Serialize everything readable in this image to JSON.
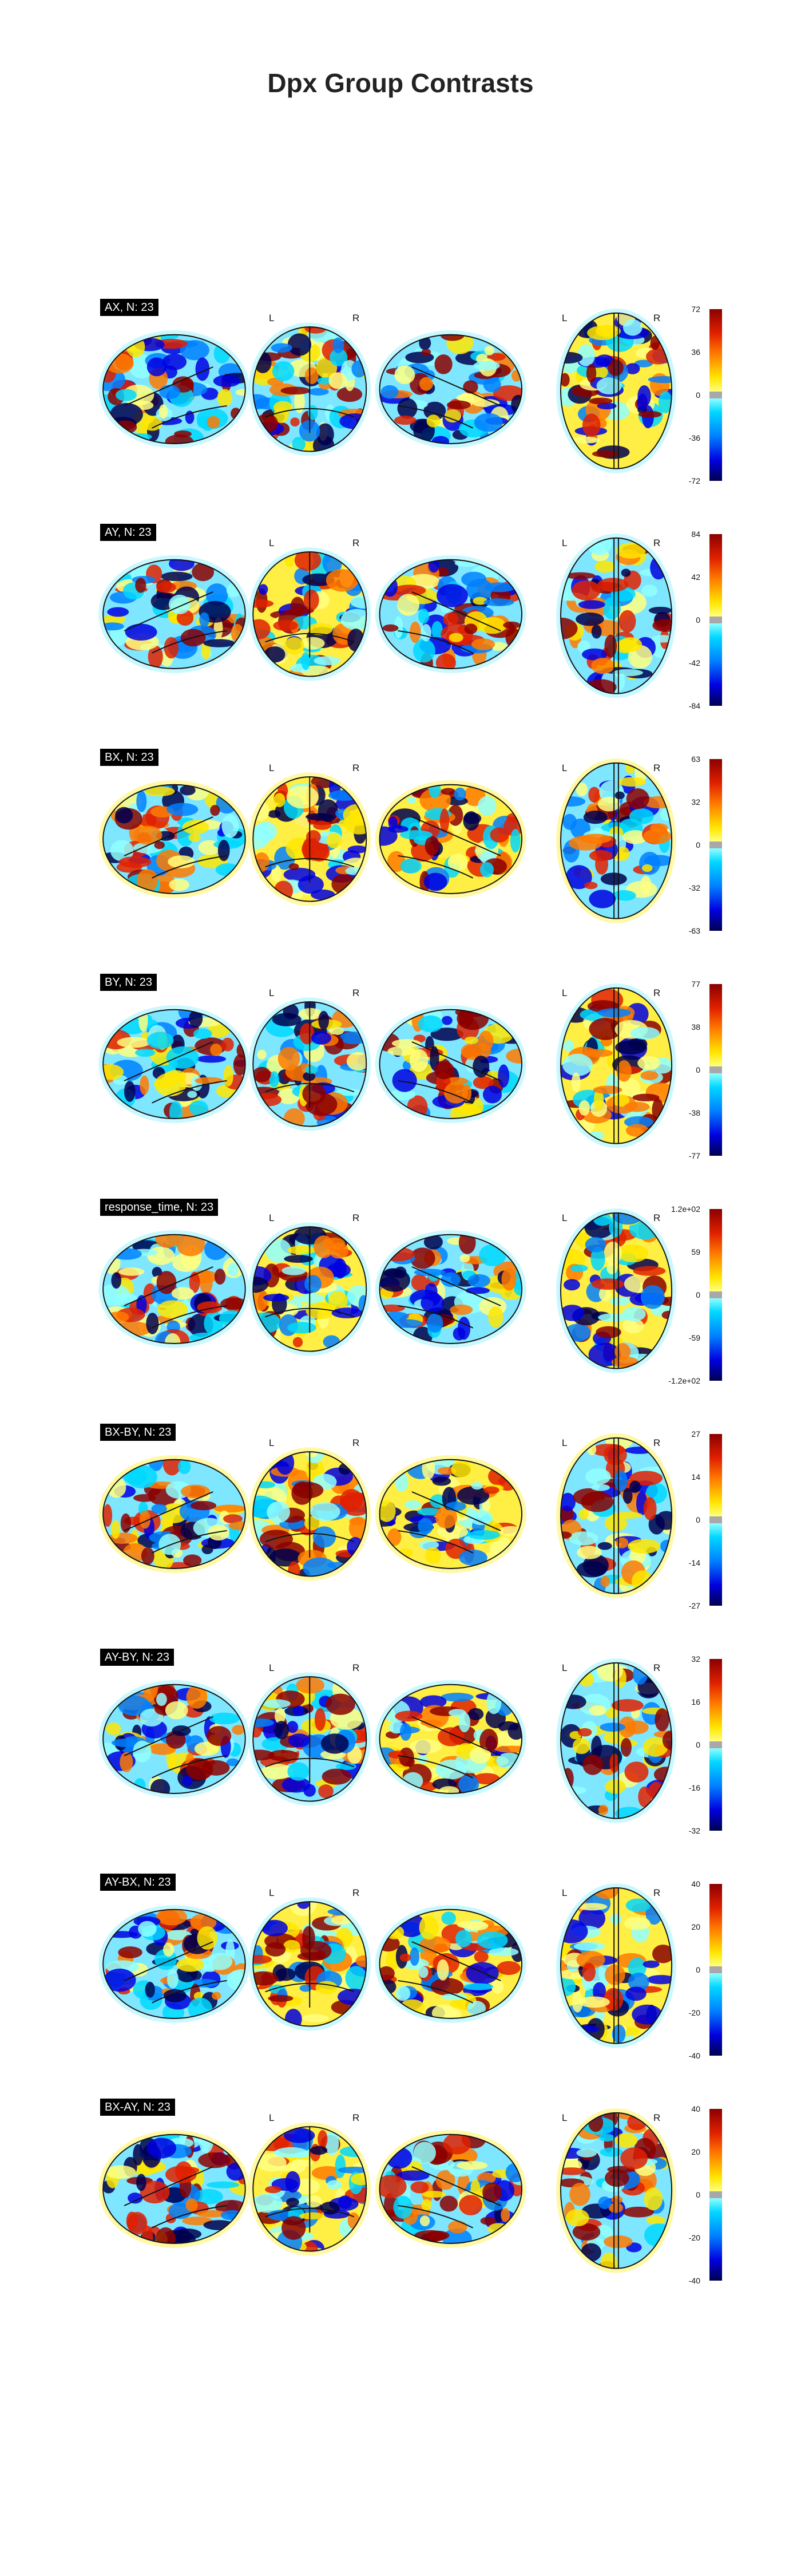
{
  "title": "Dpx Group Contrasts",
  "panels": [
    {
      "label": "AX, N: 23",
      "ticks": [
        "72",
        "36",
        "0",
        "-36",
        "-72"
      ],
      "seed": 11
    },
    {
      "label": "AY, N: 23",
      "ticks": [
        "84",
        "42",
        "0",
        "-42",
        "-84"
      ],
      "seed": 23
    },
    {
      "label": "BX, N: 23",
      "ticks": [
        "63",
        "32",
        "0",
        "-32",
        "-63"
      ],
      "seed": 37
    },
    {
      "label": "BY, N: 23",
      "ticks": [
        "77",
        "38",
        "0",
        "-38",
        "-77"
      ],
      "seed": 41
    },
    {
      "label": "response_time, N: 23",
      "ticks": [
        "1.2e+02",
        "59",
        "0",
        "-59",
        "-1.2e+02"
      ],
      "seed": 53
    },
    {
      "label": "BX-BY, N: 23",
      "ticks": [
        "27",
        "14",
        "0",
        "-14",
        "-27"
      ],
      "seed": 67
    },
    {
      "label": "AY-BY, N: 23",
      "ticks": [
        "32",
        "16",
        "0",
        "-16",
        "-32"
      ],
      "seed": 71
    },
    {
      "label": "AY-BX, N: 23",
      "ticks": [
        "40",
        "20",
        "0",
        "-20",
        "-40"
      ],
      "seed": 83
    },
    {
      "label": "BX-AY, N: 23",
      "ticks": [
        "40",
        "20",
        "0",
        "-20",
        "-40"
      ],
      "seed": 97
    }
  ],
  "hemisphere_labels": {
    "left": "L",
    "right": "R"
  },
  "colors": {
    "positive": [
      "#ffff80",
      "#ffe600",
      "#ff7a00",
      "#e02000",
      "#8b0000"
    ],
    "negative": [
      "#90ffff",
      "#00d8ff",
      "#0080ff",
      "#0000e0",
      "#00004e"
    ],
    "outline": "#111111"
  }
}
